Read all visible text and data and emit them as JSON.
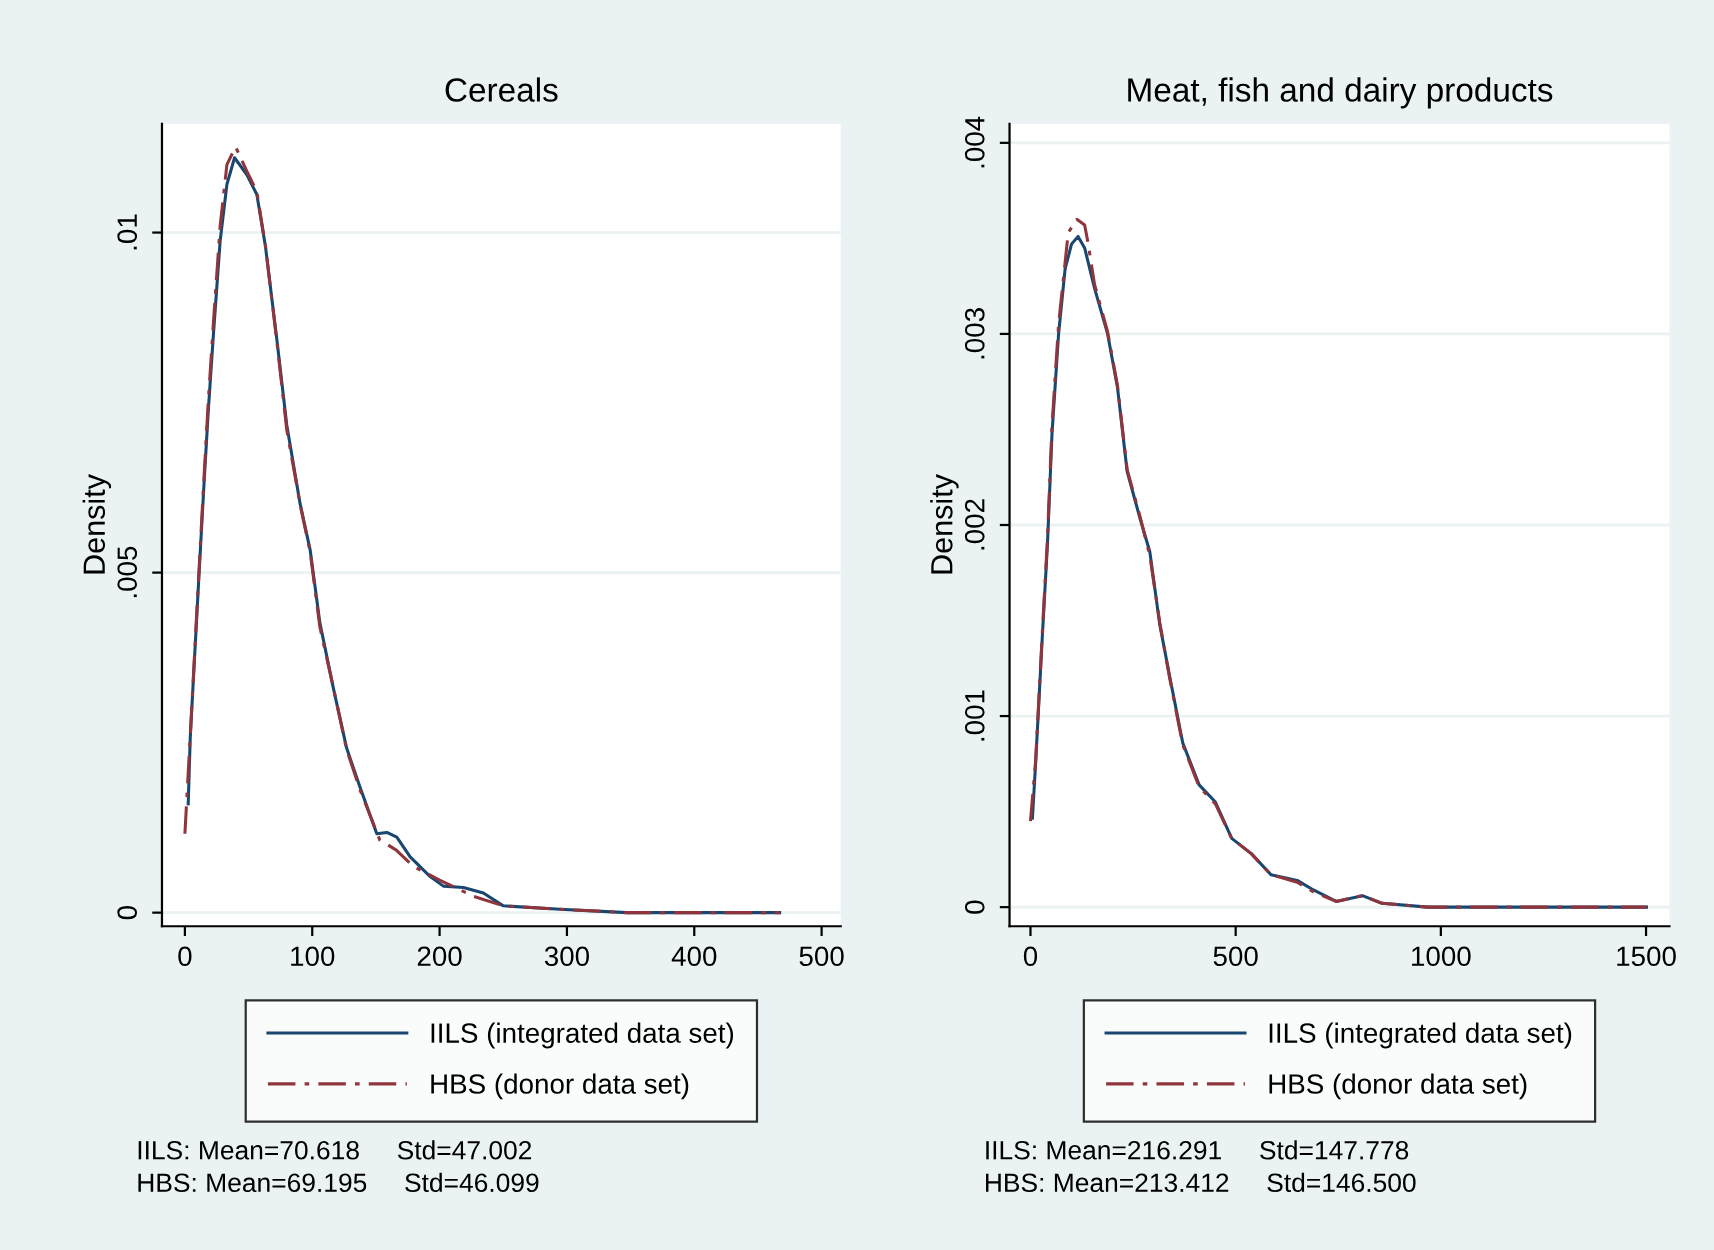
{
  "chart_data": [
    {
      "type": "line",
      "title": "Cereals",
      "ylabel": "Density",
      "xlim": [
        -18,
        515
      ],
      "ylim": [
        -0.0002,
        0.0116
      ],
      "xticks": [
        0,
        100,
        200,
        300,
        400,
        500
      ],
      "yticks": [
        0,
        {
          "value": 0.005,
          "label": ".005"
        },
        {
          "value": 0.01,
          "label": ".01"
        }
      ],
      "grid": "y",
      "legend": "bottom",
      "series": [
        {
          "name": "IILS (integrated data set)",
          "color": "#1a476f",
          "line_style": "solid",
          "x": [
            2.6,
            4.2,
            11,
            14.7,
            18.3,
            22.5,
            27.7,
            33,
            39,
            48.7,
            56.5,
            63.3,
            72.2,
            80,
            90.5,
            98.4,
            106,
            116.7,
            127,
            137.6,
            150.7,
            158.6,
            166.4,
            176.9,
            192.6,
            203,
            218.7,
            234.4,
            250,
            294.6,
            347,
            467
          ],
          "values": [
            0.0016,
            0.00257,
            0.00494,
            0.0062,
            0.00736,
            0.00853,
            0.00988,
            0.01071,
            0.0111,
            0.01085,
            0.01056,
            0.00979,
            0.00843,
            0.00717,
            0.00601,
            0.00533,
            0.00426,
            0.00329,
            0.00242,
            0.00184,
            0.00116,
            0.00118,
            0.00111,
            0.00082,
            0.00053,
            0.00039,
            0.00037,
            0.00029,
            0.0001,
            5e-05,
            0.0,
            0.0
          ]
        },
        {
          "name": "HBS (donor data set)",
          "color": "#90353b",
          "line_style": "dashed",
          "x": [
            0,
            4.2,
            11,
            14.7,
            18.3,
            22.5,
            27.7,
            33,
            39.8,
            48.7,
            56.5,
            63.3,
            72.2,
            80,
            90.5,
            98.4,
            106,
            116.7,
            127,
            137.6,
            153,
            166,
            179.5,
            200,
            226.6,
            250,
            294.6,
            347,
            467
          ],
          "values": [
            0.00116,
            0.0026,
            0.005,
            0.0063,
            0.0075,
            0.0087,
            0.0101,
            0.011,
            0.01126,
            0.0109,
            0.0106,
            0.0098,
            0.0084,
            0.0071,
            0.006,
            0.0053,
            0.0042,
            0.0033,
            0.0024,
            0.0018,
            0.00107,
            0.00092,
            0.00068,
            0.00048,
            0.00024,
            0.0001,
            5e-05,
            0.0,
            0.0
          ]
        }
      ],
      "annotations": [
        "IILS: Mean=70.618     Std=47.002",
        "HBS: Mean=69.195     Std=46.099"
      ]
    },
    {
      "type": "line",
      "title": "Meat, fish and dairy products",
      "ylabel": "Density",
      "xlim": [
        -51,
        1557
      ],
      "ylim": [
        -0.0001,
        0.0041
      ],
      "xticks": [
        0,
        500,
        1000,
        1500
      ],
      "yticks": [
        0,
        {
          "value": 0.001,
          "label": ".001"
        },
        {
          "value": 0.002,
          "label": ".002"
        },
        {
          "value": 0.003,
          "label": ".003"
        },
        {
          "value": 0.004,
          "label": ".004"
        }
      ],
      "grid": "y",
      "legend": "bottom",
      "series": [
        {
          "name": "IILS (integrated data set)",
          "color": "#1a476f",
          "line_style": "solid",
          "x": [
            4.8,
            12.7,
            28.7,
            41.4,
            52.5,
            68.5,
            84.4,
            100,
            116,
            132,
            156,
            188,
            212,
            235.6,
            267.5,
            290.8,
            315,
            339,
            371,
            411,
            450.6,
            490.4,
            538,
            586,
            650,
            689.5,
            745,
            809,
            856.7,
            968,
            1501
          ],
          "values": [
            0.000466,
            0.000759,
            0.00141,
            0.0019,
            0.00248,
            0.003,
            0.00334,
            0.00347,
            0.00351,
            0.00345,
            0.00324,
            0.003,
            0.00272,
            0.00228,
            0.00203,
            0.00186,
            0.00148,
            0.00121,
            0.00086,
            0.00064,
            0.00055,
            0.00036,
            0.00028,
            0.00017,
            0.00014,
            9e-05,
            3e-05,
            6e-05,
            2e-05,
            0.0,
            0.0
          ]
        },
        {
          "name": "HBS (donor data set)",
          "color": "#90353b",
          "line_style": "dashed",
          "x": [
            0,
            12.7,
            28.7,
            41.4,
            52.5,
            68.5,
            92,
            113,
            132,
            140,
            156,
            188,
            212,
            235.6,
            267.5,
            290.8,
            315,
            339,
            371,
            411,
            450.6,
            490.4,
            538,
            586,
            650,
            689.5,
            745,
            809,
            856.7,
            968,
            1501
          ],
          "values": [
            0.00045,
            0.00077,
            0.00143,
            0.00193,
            0.00252,
            0.00305,
            0.00353,
            0.0036,
            0.00357,
            0.00348,
            0.00326,
            0.00301,
            0.00273,
            0.00229,
            0.00204,
            0.00184,
            0.00149,
            0.0012,
            0.00085,
            0.00063,
            0.00054,
            0.00036,
            0.00028,
            0.00017,
            0.00013,
            8e-05,
            3e-05,
            6e-05,
            2e-05,
            0.0,
            0.0
          ]
        }
      ],
      "annotations": [
        "IILS: Mean=216.291     Std=147.778",
        "HBS: Mean=213.412     Std=146.500"
      ]
    }
  ]
}
